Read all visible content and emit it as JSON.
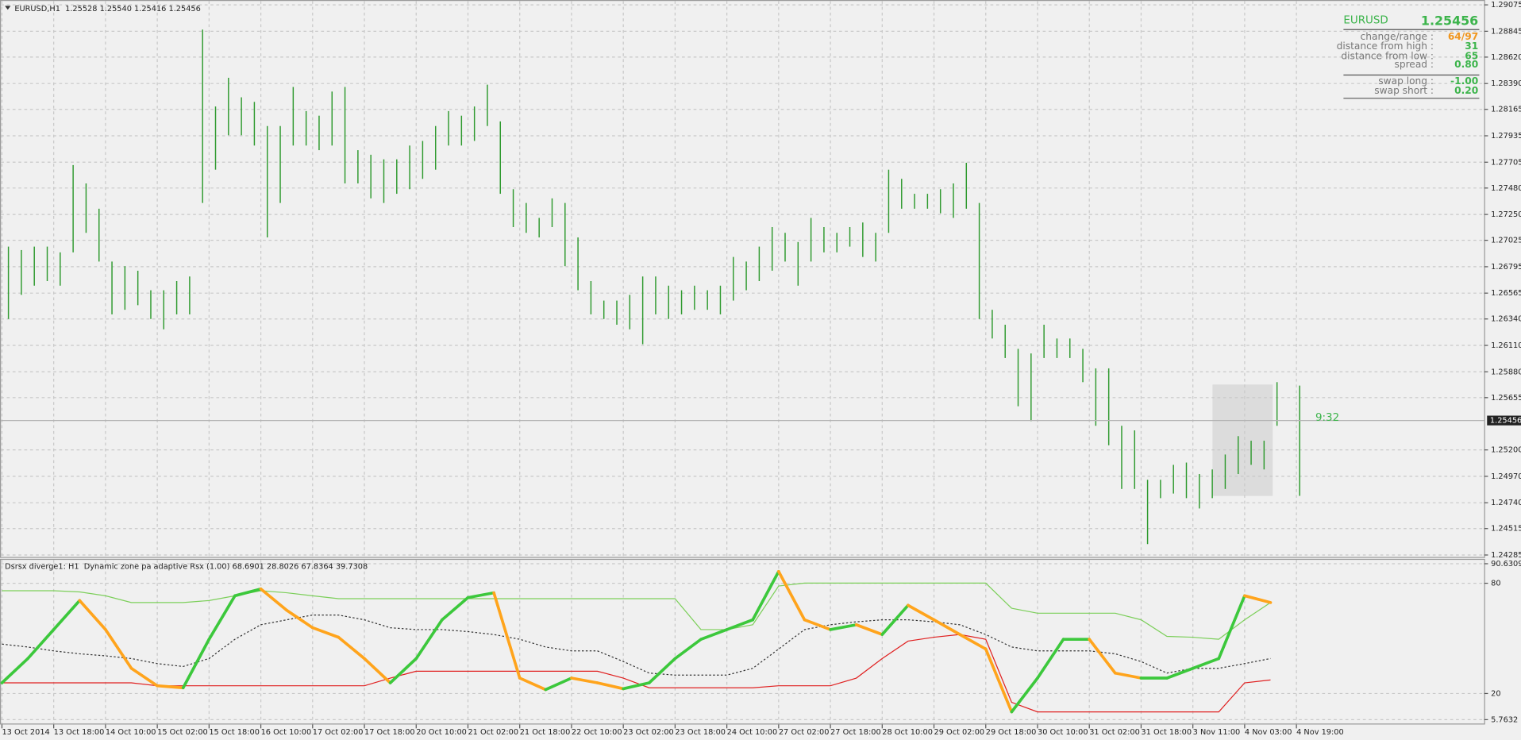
{
  "chart_data": [
    {
      "type": "ohlc",
      "title": "EURUSD,H1  1.25528 1.25540 1.25416 1.25456",
      "color": "#2f9a2f",
      "xlim": [
        0,
        458
      ],
      "x": [
        2,
        6,
        10,
        14,
        18,
        22,
        26,
        30,
        34,
        38,
        42,
        46,
        50,
        54,
        58,
        62,
        66,
        70,
        74,
        78,
        82,
        86,
        90,
        94,
        98,
        102,
        106,
        110,
        114,
        118,
        122,
        126,
        130,
        134,
        138,
        142,
        146,
        150,
        154,
        158,
        162,
        166,
        170,
        174,
        178,
        182,
        186,
        190,
        194,
        198,
        202,
        206,
        210,
        214,
        218,
        222,
        226,
        230,
        234,
        238,
        242,
        246,
        250,
        254,
        258,
        262,
        266,
        270,
        274,
        278,
        282,
        286,
        290,
        294,
        298,
        302,
        306,
        310,
        314,
        318,
        322,
        326,
        330,
        334,
        338,
        342,
        346,
        350,
        354,
        358,
        362,
        366,
        370,
        374,
        378,
        382,
        386,
        390,
        394,
        401
      ],
      "high": [
        1.2697,
        1.2694,
        1.2697,
        1.2697,
        1.2692,
        1.2768,
        1.2752,
        1.273,
        1.2684,
        1.268,
        1.2676,
        1.2659,
        1.2659,
        1.2667,
        1.2671,
        1.2886,
        1.2819,
        1.2844,
        1.2827,
        1.2823,
        1.2802,
        1.2802,
        1.2836,
        1.2815,
        1.2811,
        1.2832,
        1.2836,
        1.2781,
        1.2777,
        1.2773,
        1.2773,
        1.2785,
        1.2789,
        1.2802,
        1.2815,
        1.2811,
        1.2819,
        1.2838,
        1.2806,
        1.2747,
        1.2735,
        1.2722,
        1.2739,
        1.2735,
        1.2705,
        1.2667,
        1.265,
        1.265,
        1.2655,
        1.2671,
        1.2671,
        1.2663,
        1.2659,
        1.2663,
        1.2659,
        1.2663,
        1.2688,
        1.2684,
        1.2697,
        1.2714,
        1.2709,
        1.2701,
        1.2722,
        1.2714,
        1.2709,
        1.2714,
        1.2718,
        1.2709,
        1.2764,
        1.2756,
        1.2743,
        1.2743,
        1.2747,
        1.2752,
        1.277,
        1.2735,
        1.2642,
        1.2629,
        1.2608,
        1.2604,
        1.2629,
        1.2617,
        1.2617,
        1.2608,
        1.2591,
        1.2591,
        1.2541,
        1.2537,
        1.2494,
        1.2494,
        1.2507,
        1.2509,
        1.2499,
        1.2503,
        1.2516,
        1.2532,
        1.2528,
        1.2528,
        1.2579,
        1.2576
      ],
      "low": [
        1.2634,
        1.2655,
        1.2663,
        1.2667,
        1.2663,
        1.2692,
        1.2709,
        1.2684,
        1.2638,
        1.2642,
        1.2646,
        1.2634,
        1.2625,
        1.2638,
        1.2638,
        1.2735,
        1.2764,
        1.2794,
        1.2794,
        1.2785,
        1.2705,
        1.2735,
        1.2785,
        1.2785,
        1.2781,
        1.2785,
        1.2752,
        1.2752,
        1.2739,
        1.2735,
        1.2743,
        1.2747,
        1.2756,
        1.2764,
        1.2785,
        1.2785,
        1.2789,
        1.2802,
        1.2743,
        1.2714,
        1.2709,
        1.2705,
        1.2714,
        1.268,
        1.2659,
        1.2638,
        1.2634,
        1.2629,
        1.2625,
        1.2612,
        1.2638,
        1.2634,
        1.2638,
        1.2642,
        1.2642,
        1.2638,
        1.265,
        1.2659,
        1.2667,
        1.2676,
        1.2684,
        1.2663,
        1.2684,
        1.2692,
        1.2692,
        1.2697,
        1.2688,
        1.2684,
        1.2709,
        1.273,
        1.273,
        1.273,
        1.2726,
        1.2722,
        1.273,
        1.2634,
        1.2617,
        1.26,
        1.2558,
        1.2545,
        1.26,
        1.26,
        1.26,
        1.2579,
        1.2541,
        1.2524,
        1.2486,
        1.2486,
        1.2438,
        1.2478,
        1.2482,
        1.2478,
        1.2469,
        1.2478,
        1.2486,
        1.2499,
        1.2507,
        1.2503,
        1.2541,
        1.248
      ],
      "current_price": 1.25456,
      "timer": "9:32",
      "ylim": [
        1.24285,
        1.29075
      ],
      "yticks": [
        1.29075,
        1.28845,
        {
          "value": 1.2862,
          "label": "1.28620"
        },
        {
          "value": 1.2839,
          "label": "1.28390"
        },
        1.28165,
        1.27935,
        1.27705,
        {
          "value": 1.2748,
          "label": "1.27480"
        },
        {
          "value": 1.2725,
          "label": "1.27250"
        },
        1.27025,
        1.26795,
        1.26565,
        {
          "value": 1.2634,
          "label": "1.26340"
        },
        {
          "value": 1.2611,
          "label": "1.26110"
        },
        {
          "value": 1.2588,
          "label": "1.25880"
        },
        1.25655,
        {
          "value": 1.252,
          "label": "1.25200"
        },
        {
          "value": 1.2497,
          "label": "1.24970"
        },
        {
          "value": 1.2474,
          "label": "1.24740"
        },
        1.24515,
        1.24285
      ],
      "grid": true
    },
    {
      "type": "line",
      "title": "Dsrsx diverge1: H1  Dynamic zone pa adaptive Rsx (1.00) 68.6901 28.8026 67.8364 39.7308",
      "xlim": [
        0,
        458
      ],
      "x": [
        0,
        8,
        16,
        24,
        32,
        40,
        48,
        56,
        64,
        72,
        80,
        88,
        96,
        104,
        112,
        120,
        128,
        136,
        144,
        152,
        160,
        168,
        176,
        184,
        192,
        200,
        208,
        216,
        224,
        232,
        240,
        248,
        256,
        264,
        272,
        280,
        288,
        296,
        304,
        312,
        320,
        328,
        336,
        344,
        352,
        360,
        368,
        376,
        384,
        392
      ],
      "series": [
        {
          "color": "#7ccf5a",
          "values": [
            75.9,
            75.9,
            75.9,
            75.3,
            73.2,
            69.5,
            69.5,
            69.5,
            70.6,
            73.2,
            75.9,
            74.8,
            73.2,
            71.6,
            71.6,
            71.6,
            71.6,
            71.6,
            71.6,
            71.6,
            71.6,
            71.6,
            71.6,
            71.6,
            71.6,
            71.6,
            71.6,
            54.8,
            54.8,
            57.4,
            78.5,
            80.1,
            80.1,
            80.1,
            80.1,
            80.1,
            80.1,
            80.1,
            80.1,
            66.4,
            63.7,
            63.7,
            63.7,
            63.7,
            60.1,
            51.1,
            50.6,
            49.5,
            60.1,
            69.5
          ]
        },
        {
          "color": "#333333",
          "dashed": true,
          "values": [
            46.9,
            45.3,
            43.2,
            41.6,
            40.5,
            39.0,
            36.3,
            34.7,
            39.0,
            49.5,
            57.4,
            60.1,
            62.7,
            62.7,
            60.1,
            55.8,
            54.8,
            54.8,
            53.7,
            52.1,
            49.5,
            45.3,
            43.2,
            43.2,
            37.4,
            31.1,
            30.0,
            30.0,
            30.0,
            33.7,
            44.2,
            54.8,
            57.4,
            59.0,
            60.1,
            60.1,
            59.0,
            57.4,
            52.1,
            45.3,
            43.2,
            43.2,
            43.2,
            41.6,
            37.4,
            31.1,
            33.7,
            33.7,
            36.3,
            39.0
          ]
        },
        {
          "color": "#e02020",
          "values": [
            25.8,
            25.8,
            25.8,
            25.8,
            25.8,
            25.8,
            24.2,
            24.2,
            24.2,
            24.2,
            24.2,
            24.2,
            24.2,
            24.2,
            24.2,
            28.4,
            32.1,
            32.1,
            32.1,
            32.1,
            32.1,
            32.1,
            32.1,
            32.1,
            28.4,
            23.1,
            23.1,
            23.1,
            23.1,
            23.1,
            24.2,
            24.2,
            24.2,
            28.4,
            39.0,
            48.5,
            50.6,
            52.1,
            49.5,
            15.2,
            10.0,
            10.0,
            10.0,
            10.0,
            10.0,
            10.0,
            10.0,
            10.0,
            25.8,
            27.4
          ]
        },
        {
          "color": "#3cc83c",
          "down_color": "#ffa41c",
          "thick": true,
          "values": [
            25.8,
            39.0,
            54.8,
            70.6,
            54.8,
            33.7,
            24.2,
            23.1,
            49.5,
            73.2,
            76.9,
            65.3,
            55.8,
            50.6,
            39.0,
            25.8,
            39.0,
            60.1,
            72.2,
            74.8,
            28.4,
            22.1,
            28.4,
            25.8,
            22.6,
            25.8,
            39.0,
            49.5,
            54.8,
            60.1,
            86.4,
            60.1,
            54.8,
            57.4,
            52.1,
            68.0,
            60.1,
            52.1,
            44.2,
            10.0,
            28.4,
            49.5,
            49.5,
            31.1,
            28.4,
            28.4,
            33.7,
            39.0,
            73.2,
            69.5
          ]
        }
      ],
      "ylim": [
        5.7632,
        90.6309
      ],
      "yticks": [
        90.6309,
        80,
        20,
        5.7632
      ],
      "xticks": [
        {
          "value": 0,
          "label": "13 Oct 2014"
        },
        {
          "value": 16,
          "label": "13 Oct 18:00"
        },
        {
          "value": 32,
          "label": "14 Oct 10:00"
        },
        {
          "value": 48,
          "label": "15 Oct 02:00"
        },
        {
          "value": 64,
          "label": "15 Oct 18:00"
        },
        {
          "value": 80,
          "label": "16 Oct 10:00"
        },
        {
          "value": 96,
          "label": "17 Oct 02:00"
        },
        {
          "value": 112,
          "label": "17 Oct 18:00"
        },
        {
          "value": 128,
          "label": "20 Oct 10:00"
        },
        {
          "value": 144,
          "label": "21 Oct 02:00"
        },
        {
          "value": 160,
          "label": "21 Oct 18:00"
        },
        {
          "value": 176,
          "label": "22 Oct 10:00"
        },
        {
          "value": 192,
          "label": "23 Oct 02:00"
        },
        {
          "value": 208,
          "label": "23 Oct 18:00"
        },
        {
          "value": 224,
          "label": "24 Oct 10:00"
        },
        {
          "value": 240,
          "label": "27 Oct 02:00"
        },
        {
          "value": 256,
          "label": "27 Oct 18:00"
        },
        {
          "value": 272,
          "label": "28 Oct 10:00"
        },
        {
          "value": 288,
          "label": "29 Oct 02:00"
        },
        {
          "value": 304,
          "label": "29 Oct 18:00"
        },
        {
          "value": 320,
          "label": "30 Oct 10:00"
        },
        {
          "value": 336,
          "label": "31 Oct 02:00"
        },
        {
          "value": 352,
          "label": "31 Oct 18:00"
        },
        {
          "value": 368,
          "label": "3 Nov 11:00"
        },
        {
          "value": 384,
          "label": "4 Nov 03:00"
        },
        {
          "value": 400,
          "label": "4 Nov 19:00"
        }
      ],
      "grid": true
    }
  ],
  "info_panel": {
    "symbol": "EURUSD",
    "price": "1.25456",
    "rows": [
      {
        "label": "change/range :",
        "value": "64/97",
        "color": "#f0961e"
      },
      {
        "label": "distance from high :",
        "value": "31",
        "color": "#3cb44b"
      },
      {
        "label": "distance from low :",
        "value": "65",
        "color": "#3cb44b"
      },
      {
        "label": "spread :",
        "value": "0.80",
        "color": "#3cb44b"
      },
      {
        "label": "swap long :",
        "value": "-1.00",
        "color": "#3cb44b"
      },
      {
        "label": "swap short :",
        "value": "0.20",
        "color": "#3cb44b"
      }
    ]
  }
}
